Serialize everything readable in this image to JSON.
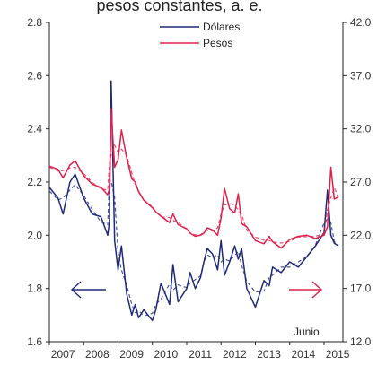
{
  "chart_data": {
    "type": "line",
    "title": "pesos constantes, a. e.",
    "x_tick_labels": [
      "2007",
      "2008",
      "2009",
      "2010",
      "2011",
      "2012",
      "2013",
      "2014",
      "2015"
    ],
    "y_left": {
      "lim": [
        1.6,
        2.8
      ],
      "ticks": [
        "1.6",
        "1.8",
        "2.0",
        "2.2",
        "2.4",
        "2.6",
        "2.8"
      ]
    },
    "y_right": {
      "lim": [
        12.0,
        42.0
      ],
      "ticks": [
        "12.0",
        "17.0",
        "22.0",
        "27.0",
        "32.0",
        "37.0",
        "42.0"
      ]
    },
    "annotation": "Junio",
    "arrows": {
      "left": "left-axis",
      "right": "right-axis"
    },
    "colors": {
      "dolares": "#1f2a7a",
      "pesos": "#e0204a",
      "axis": "#222222"
    },
    "legend_position": "top-center",
    "series": [
      {
        "name": "Dólares",
        "axis": "left",
        "x": [
          2007.0,
          2007.25,
          2007.4,
          2007.6,
          2007.75,
          2008.0,
          2008.25,
          2008.5,
          2008.7,
          2008.75,
          2008.8,
          2008.9,
          2009.0,
          2009.1,
          2009.25,
          2009.4,
          2009.5,
          2009.6,
          2009.75,
          2010.0,
          2010.1,
          2010.25,
          2010.5,
          2010.6,
          2010.75,
          2011.0,
          2011.1,
          2011.25,
          2011.4,
          2011.5,
          2011.6,
          2011.75,
          2011.9,
          2012.0,
          2012.1,
          2012.25,
          2012.4,
          2012.5,
          2012.6,
          2012.75,
          2013.0,
          2013.25,
          2013.4,
          2013.5,
          2013.75,
          2014.0,
          2014.25,
          2014.5,
          2014.75,
          2015.0,
          2015.1,
          2015.2,
          2015.3,
          2015.42
        ],
        "y": [
          2.18,
          2.14,
          2.08,
          2.2,
          2.23,
          2.14,
          2.08,
          2.07,
          2.0,
          2.05,
          2.58,
          1.98,
          1.87,
          1.96,
          1.78,
          1.7,
          1.74,
          1.69,
          1.72,
          1.68,
          1.72,
          1.82,
          1.74,
          1.89,
          1.75,
          1.8,
          1.86,
          1.8,
          1.84,
          1.9,
          1.95,
          1.93,
          1.87,
          1.98,
          1.85,
          1.9,
          1.96,
          1.91,
          1.95,
          1.8,
          1.73,
          1.83,
          1.81,
          1.88,
          1.86,
          1.9,
          1.88,
          1.92,
          1.96,
          2.01,
          2.17,
          2.0,
          1.97,
          1.96
        ]
      },
      {
        "name": "Pesos",
        "axis": "right",
        "x": [
          2007.0,
          2007.25,
          2007.4,
          2007.6,
          2007.75,
          2008.0,
          2008.25,
          2008.5,
          2008.7,
          2008.75,
          2008.8,
          2008.9,
          2009.0,
          2009.1,
          2009.25,
          2009.4,
          2009.5,
          2009.6,
          2009.75,
          2010.0,
          2010.1,
          2010.25,
          2010.5,
          2010.6,
          2010.75,
          2011.0,
          2011.1,
          2011.25,
          2011.4,
          2011.5,
          2011.6,
          2011.75,
          2011.9,
          2012.0,
          2012.1,
          2012.25,
          2012.4,
          2012.5,
          2012.6,
          2012.75,
          2013.0,
          2013.25,
          2013.4,
          2013.5,
          2013.75,
          2014.0,
          2014.25,
          2014.5,
          2014.75,
          2015.0,
          2015.1,
          2015.2,
          2015.3,
          2015.42
        ],
        "y": [
          28.5,
          28.2,
          27.4,
          28.6,
          29.0,
          27.6,
          26.8,
          26.5,
          25.8,
          26.4,
          33.9,
          28.4,
          29.1,
          31.9,
          29.3,
          27.3,
          27.0,
          26.1,
          25.3,
          24.6,
          24.2,
          23.8,
          23.2,
          24.0,
          23.0,
          22.6,
          22.2,
          21.9,
          22.0,
          22.2,
          22.7,
          22.5,
          22.0,
          23.6,
          26.4,
          24.5,
          24.1,
          25.9,
          23.1,
          22.8,
          21.5,
          21.2,
          21.9,
          21.4,
          20.8,
          21.6,
          21.9,
          22.0,
          21.7,
          22.0,
          22.8,
          28.4,
          25.4,
          25.6
        ]
      }
    ]
  }
}
